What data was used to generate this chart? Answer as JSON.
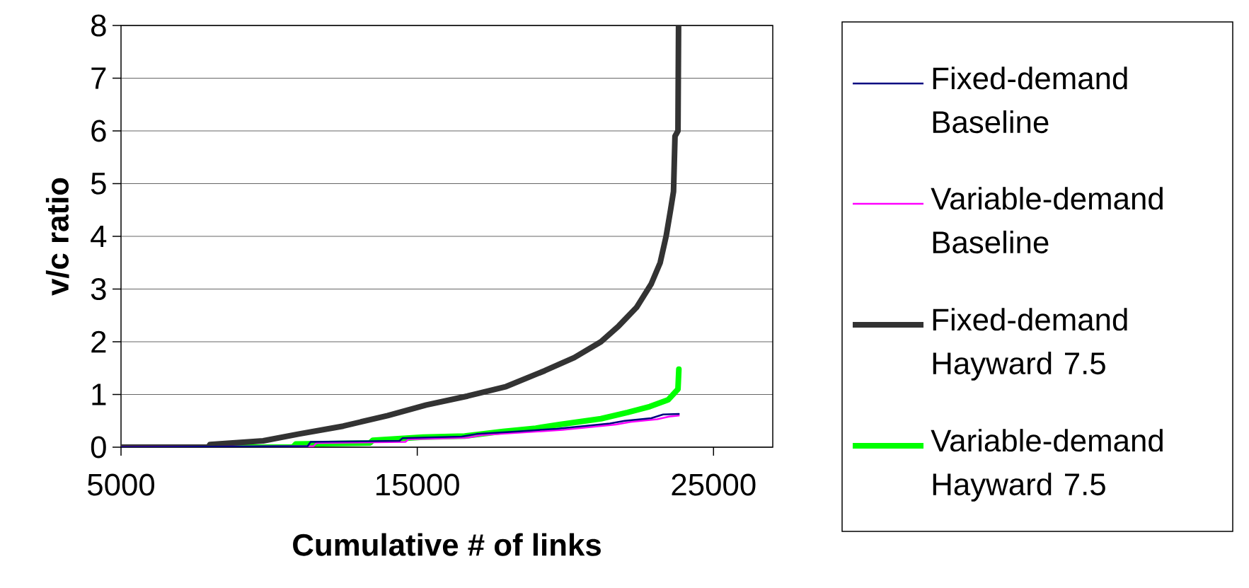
{
  "chart_data": {
    "type": "line",
    "xlabel": "Cumulative # of links",
    "ylabel": "v/c ratio",
    "xlim": [
      5000,
      27000
    ],
    "ylim": [
      0,
      8
    ],
    "xticks": [
      5000,
      15000,
      25000
    ],
    "yticks": [
      0,
      1,
      2,
      3,
      4,
      5,
      6,
      7,
      8
    ],
    "grid": "y",
    "legend": "right",
    "marker": "none",
    "line_style": "solid",
    "series": [
      {
        "name": "Fixed-demand Baseline",
        "color": "#000080",
        "x": [
          5000,
          11300,
          11400,
          14400,
          14500,
          16500,
          17000,
          18400,
          19700,
          20600,
          21500,
          22000,
          22900,
          23300,
          23830
        ],
        "values": [
          0,
          0.02,
          0.1,
          0.12,
          0.17,
          0.2,
          0.25,
          0.3,
          0.35,
          0.4,
          0.45,
          0.5,
          0.55,
          0.62,
          0.63
        ]
      },
      {
        "name": "Variable-demand Baseline",
        "color": "#ff00ff",
        "x": [
          5000,
          11500,
          11600,
          14600,
          14700,
          16700,
          17200,
          18600,
          19900,
          20800,
          21700,
          22200,
          23100,
          23500,
          23830
        ],
        "values": [
          0,
          0.02,
          0.08,
          0.1,
          0.15,
          0.18,
          0.23,
          0.28,
          0.33,
          0.38,
          0.43,
          0.48,
          0.53,
          0.58,
          0.6
        ]
      },
      {
        "name": "Fixed-demand Hayward 7.5",
        "color": "#333333",
        "x": [
          5000,
          7950,
          8000,
          9800,
          11000,
          12500,
          14000,
          15300,
          16700,
          18000,
          19300,
          20300,
          21200,
          21800,
          22400,
          22900,
          23200,
          23400,
          23550,
          23650,
          23700,
          23800,
          23820
        ],
        "values": [
          0,
          0,
          0.05,
          0.12,
          0.25,
          0.4,
          0.6,
          0.8,
          0.97,
          1.15,
          1.45,
          1.7,
          2.0,
          2.3,
          2.65,
          3.1,
          3.5,
          4.0,
          4.5,
          4.85,
          5.9,
          6.0,
          8.0
        ]
      },
      {
        "name": "Variable-demand Hayward 7.5",
        "color": "#00ff00",
        "x": [
          5000,
          10800,
          10900,
          13400,
          13500,
          15200,
          16600,
          17900,
          19000,
          19800,
          21200,
          22100,
          22850,
          23470,
          23800,
          23830
        ],
        "values": [
          0,
          0,
          0.06,
          0.08,
          0.13,
          0.19,
          0.21,
          0.3,
          0.36,
          0.43,
          0.54,
          0.66,
          0.77,
          0.9,
          1.1,
          1.48
        ]
      }
    ]
  }
}
